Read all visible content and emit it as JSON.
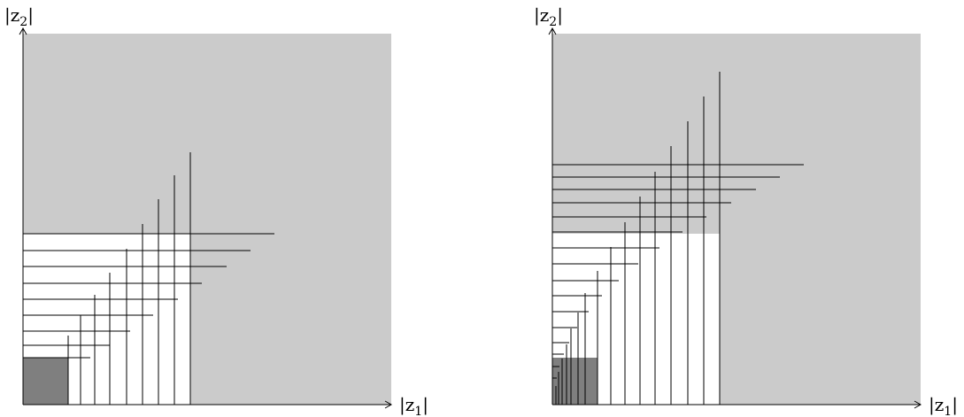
{
  "panels": [
    {
      "id": "left",
      "x_axis_label": {
        "pre": "|z",
        "sub": "1",
        "post": "|"
      },
      "y_axis_label": {
        "pre": "|z",
        "sub": "2",
        "post": "|"
      }
    },
    {
      "id": "right",
      "x_axis_label": {
        "pre": "|z",
        "sub": "1",
        "post": "|"
      },
      "y_axis_label": {
        "pre": "|z",
        "sub": "2",
        "post": "|"
      }
    }
  ],
  "colors": {
    "shaded_region": "#cbcbcb",
    "dark_square": "#7f7f7f",
    "lines": "#000000",
    "background": "#ffffff"
  }
}
